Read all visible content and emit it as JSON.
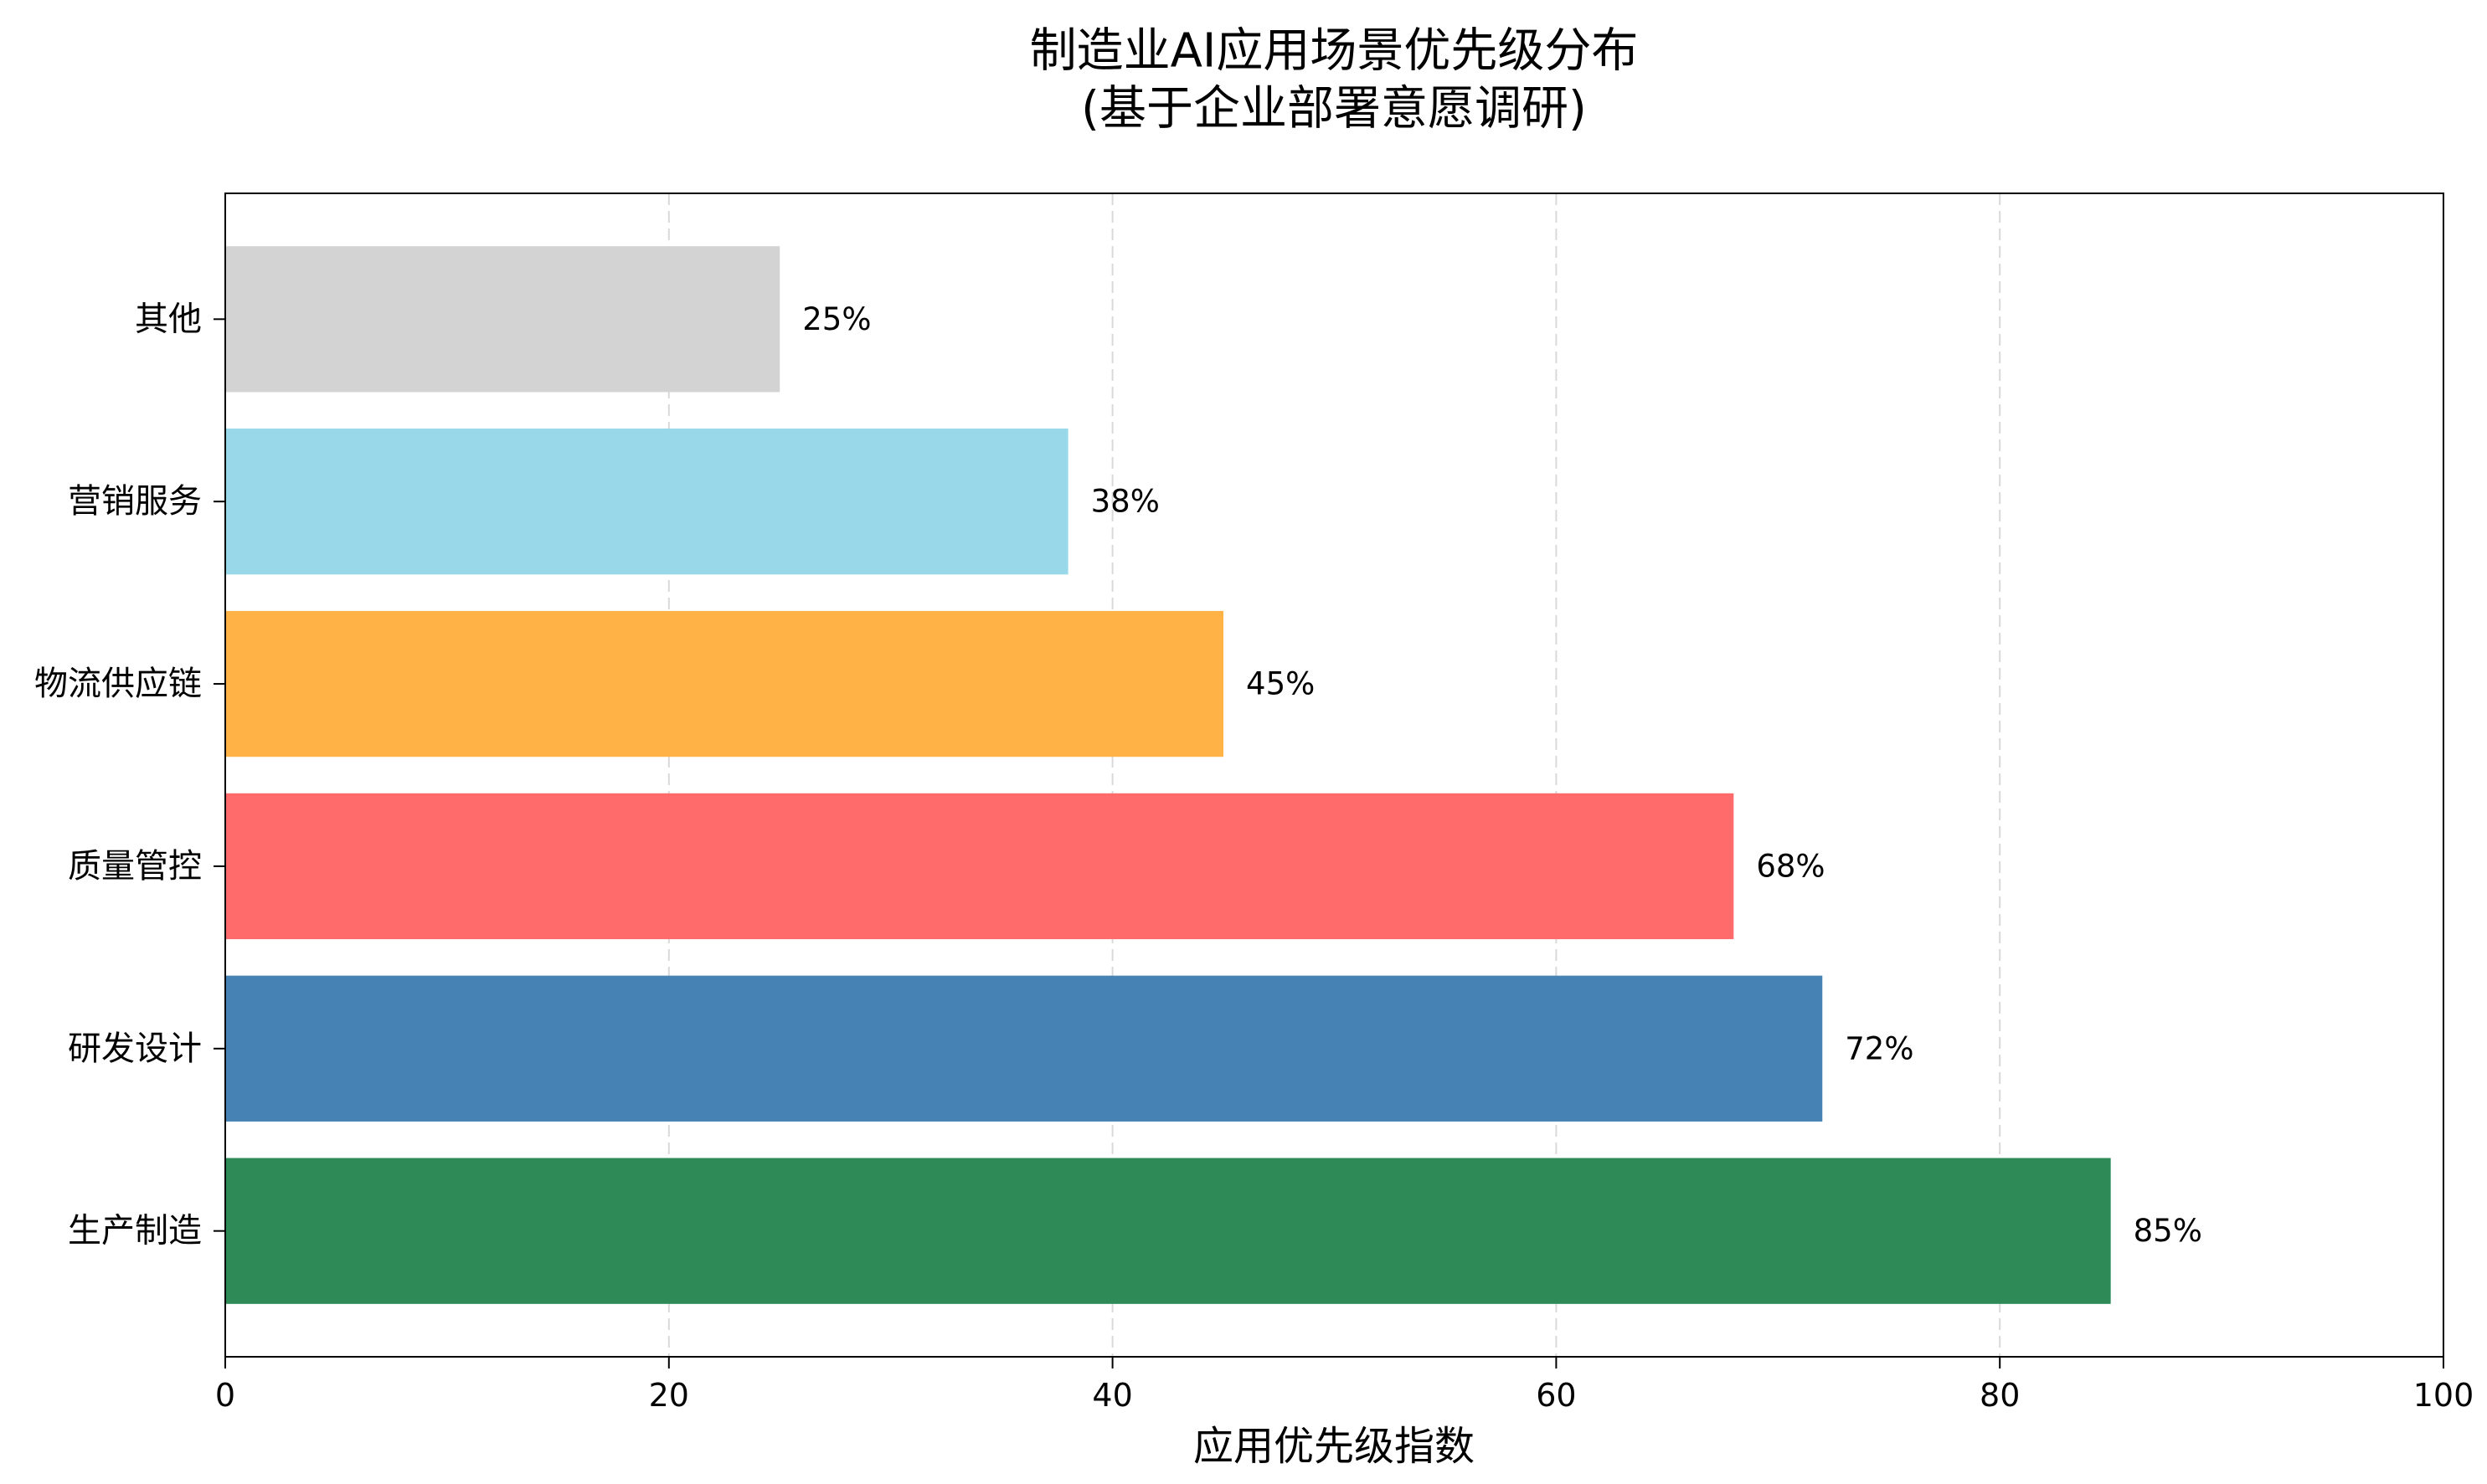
{
  "chart_data": {
    "type": "bar",
    "horizontal": true,
    "title": "制造业AI应用场景优先级分布",
    "subtitle": "(基于企业部署意愿调研)",
    "xlabel": "应用优先级指数",
    "ylabel": "",
    "categories": [
      "生产制造",
      "研发设计",
      "质量管控",
      "物流供应链",
      "营销服务",
      "其他"
    ],
    "values": [
      85,
      72,
      68,
      45,
      38,
      25
    ],
    "value_labels": [
      "85%",
      "72%",
      "68%",
      "45%",
      "38%",
      "25%"
    ],
    "colors": [
      "#2E8B57",
      "#4682B4",
      "#FF6B6B",
      "#FFB347",
      "#98D8E8",
      "#D3D3D3"
    ],
    "xlim": [
      0,
      100
    ],
    "xticks": [
      0,
      20,
      40,
      60,
      80,
      100
    ],
    "grid": true,
    "legend": false
  }
}
